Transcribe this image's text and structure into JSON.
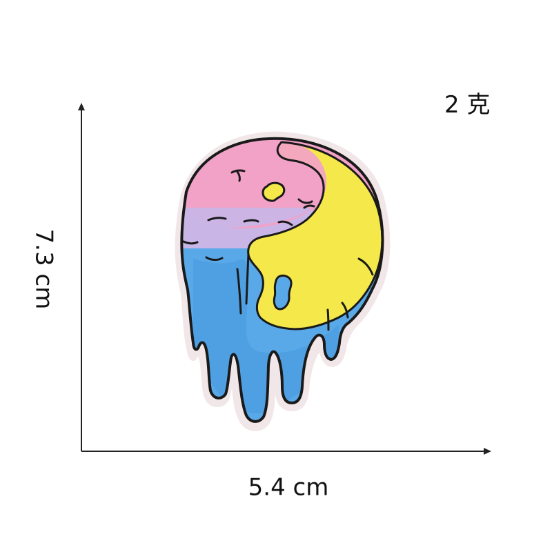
{
  "labels": {
    "weight": "2 克",
    "height": "7.3 cm",
    "width": "5.4 cm"
  },
  "patch": {
    "subject": "melting yin-yang embroidered patch",
    "colors": {
      "pink": "#f2a2c7",
      "lavender": "#c9b5e6",
      "blue": "#59a9e8",
      "yellow": "#f5e84a",
      "outline": "#1a1a1a",
      "felt_border": "#f1e6e8"
    }
  },
  "dimension_lines": {
    "color": "#222222"
  }
}
